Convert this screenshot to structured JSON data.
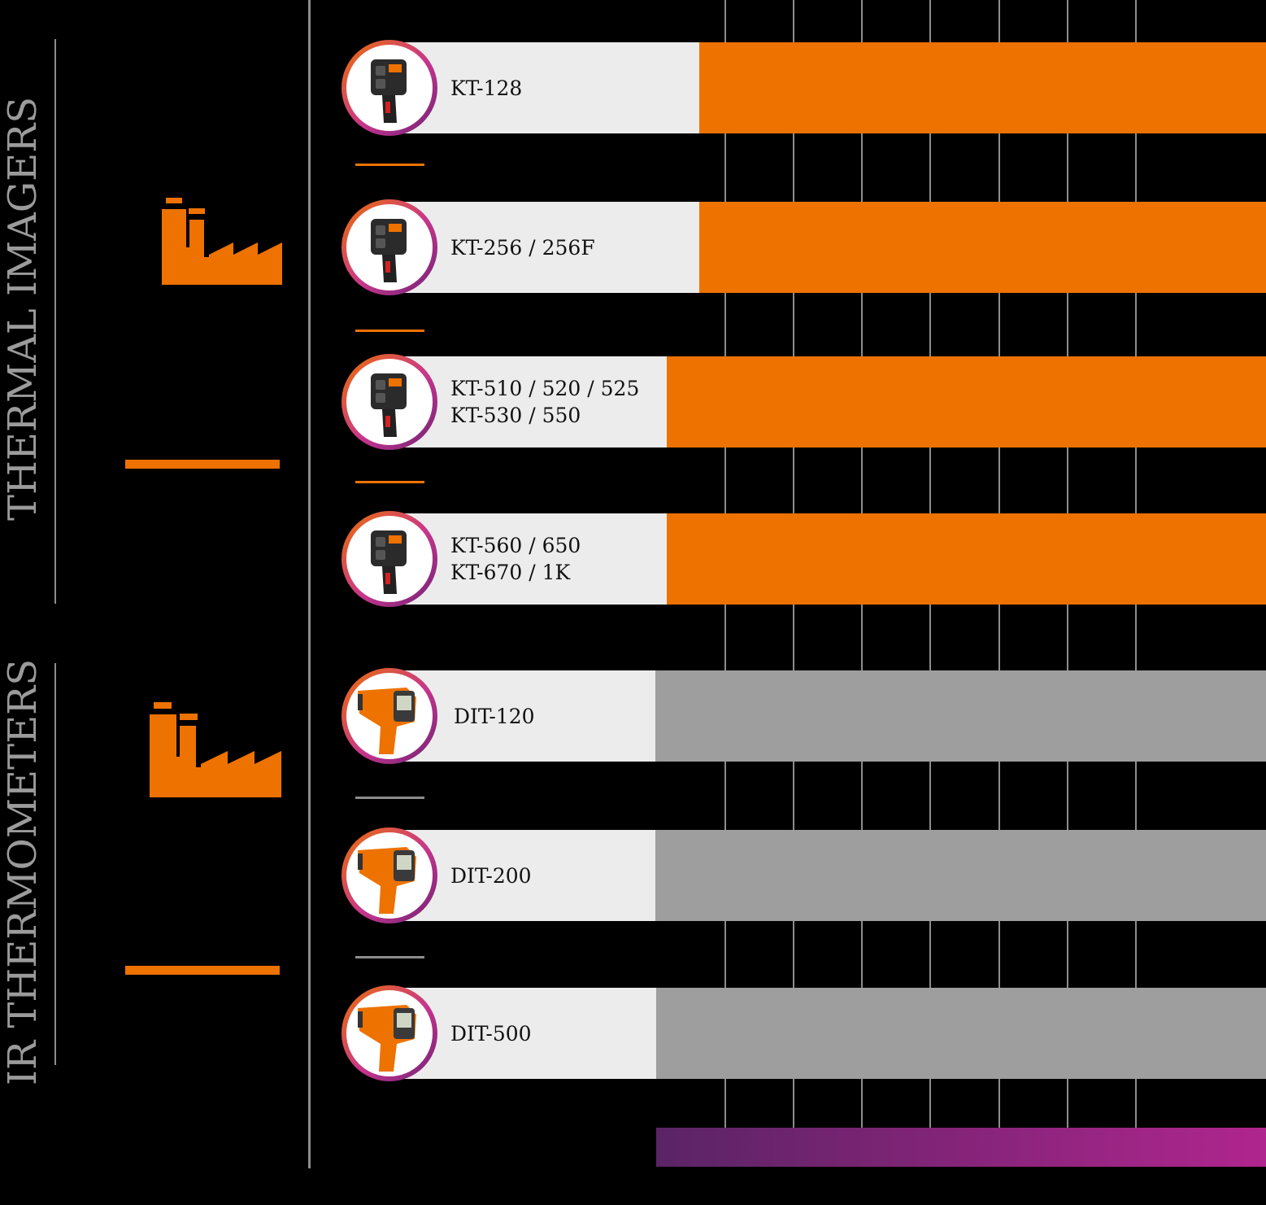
{
  "colors": {
    "orange": "#ee7200",
    "gray_bar": "#9e9e9e",
    "label_bg": "#ececec",
    "grid": "#8c8c8c",
    "purple_start": "#5a2465",
    "purple_end": "#b0258e",
    "section_title": "#9b9b9b"
  },
  "sections": {
    "thermal_title": "THERMAL IMAGERS",
    "ir_title": "IR THERMOMETERS"
  },
  "chart_data": {
    "type": "bar",
    "orientation": "horizontal",
    "title": "",
    "xlabel": "",
    "ylabel": "",
    "grid": true,
    "categories": [
      "KT-128",
      "KT-256 / 256F",
      "KT-510 / 520 / 525 KT-530 / 550",
      "KT-560 / 650 KT-670 / 1K",
      "DIT-120",
      "DIT-200",
      "DIT-500"
    ],
    "rows": [
      {
        "lines": [
          "KT-128"
        ],
        "group": "thermal",
        "icon": "thermal-camera-icon",
        "color": "#ee7200"
      },
      {
        "lines": [
          "KT-256 / 256F"
        ],
        "group": "thermal",
        "icon": "thermal-camera-icon",
        "color": "#ee7200"
      },
      {
        "lines": [
          "KT-510 / 520 / 525",
          "KT-530 / 550"
        ],
        "group": "thermal",
        "icon": "thermal-camera-icon",
        "color": "#ee7200"
      },
      {
        "lines": [
          "KT-560 / 650",
          "KT-670 / 1K"
        ],
        "group": "thermal",
        "icon": "thermal-camera-icon",
        "color": "#ee7200"
      },
      {
        "lines": [
          "DIT-120"
        ],
        "group": "ir",
        "icon": "ir-thermometer-icon",
        "color": "#9e9e9e"
      },
      {
        "lines": [
          "DIT-200"
        ],
        "group": "ir",
        "icon": "ir-thermometer-icon",
        "color": "#9e9e9e"
      },
      {
        "lines": [
          "DIT-500"
        ],
        "group": "ir",
        "icon": "ir-thermometer-icon",
        "color": "#9e9e9e"
      }
    ],
    "range_bar": {
      "color_start": "#5a2465",
      "color_end": "#b0258e"
    }
  }
}
